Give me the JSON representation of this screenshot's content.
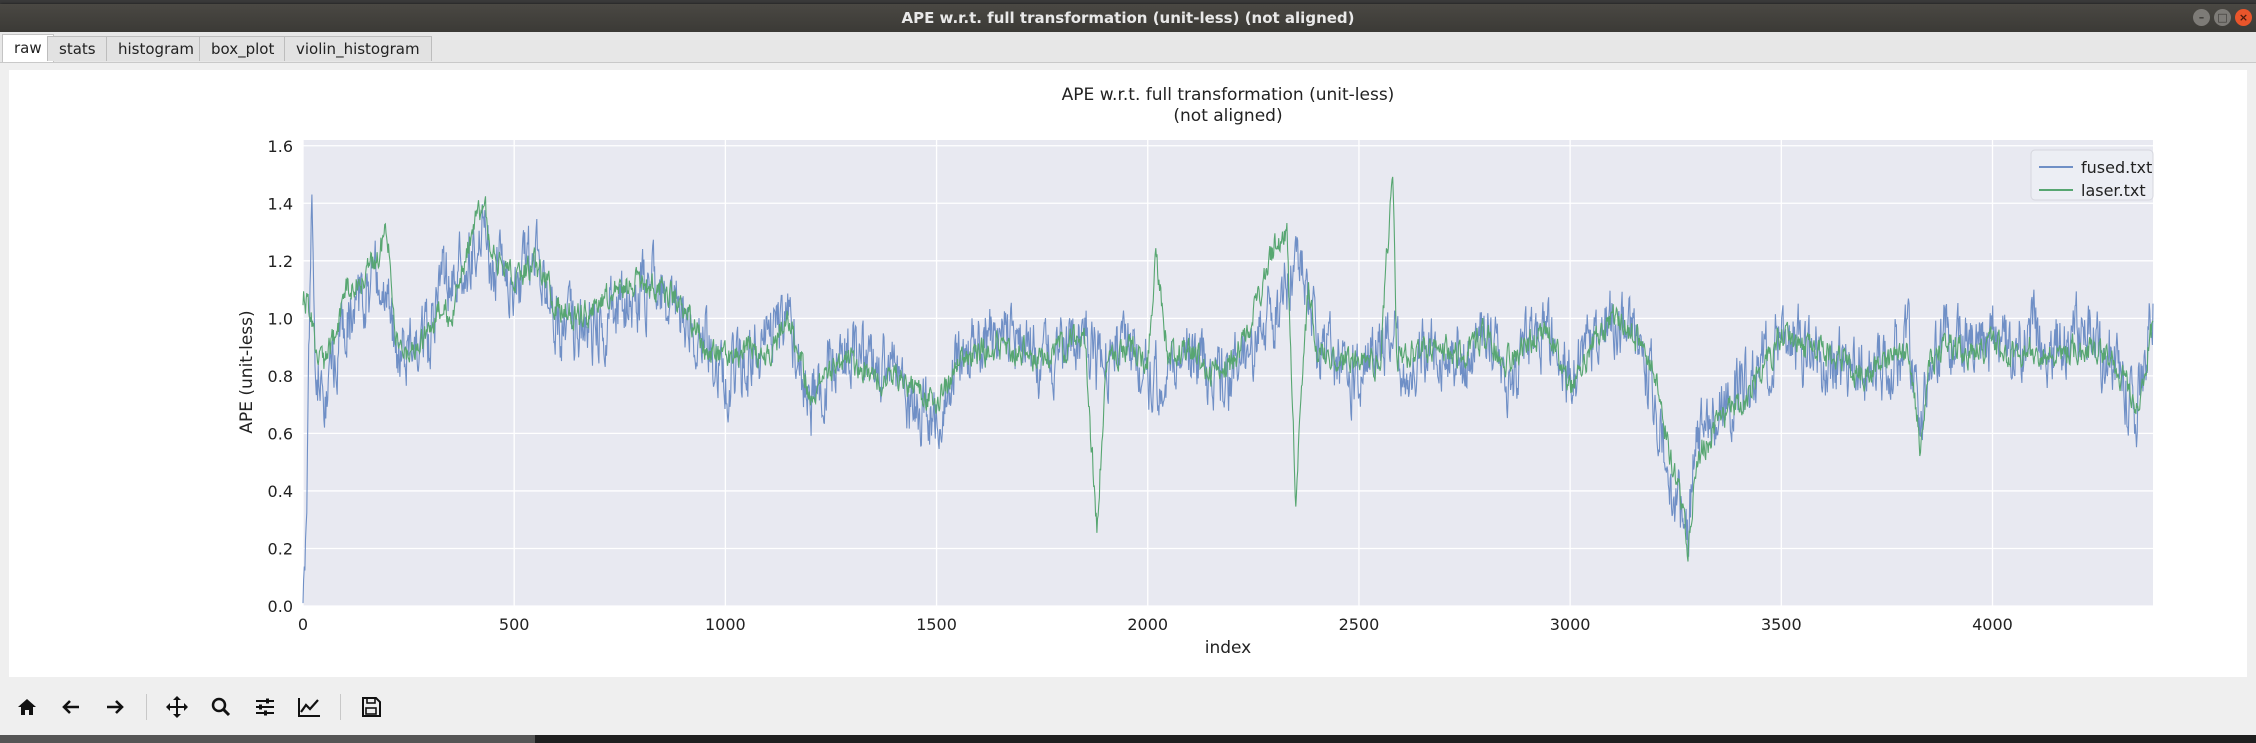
{
  "window": {
    "title": "APE w.r.t. full transformation (unit-less) (not aligned)",
    "controls": [
      "minimize-icon",
      "maximize-icon",
      "close-icon"
    ]
  },
  "tabs": [
    {
      "label": "raw",
      "active": true
    },
    {
      "label": "stats",
      "active": false
    },
    {
      "label": "histogram",
      "active": false
    },
    {
      "label": "box_plot",
      "active": false
    },
    {
      "label": "violin_histogram",
      "active": false
    }
  ],
  "toolbar": {
    "tools": [
      "home-icon",
      "back-icon",
      "forward-icon",
      "pan-icon",
      "zoom-icon",
      "configure-subplots-icon",
      "edit-axis-icon",
      "save-icon"
    ]
  },
  "colors": {
    "plot_background": "#e8e9f1",
    "grid": "#ffffff",
    "fused": "#6f8fc6",
    "laser": "#57a671",
    "close_button": "#e9552b"
  },
  "chart_data": {
    "type": "line",
    "title": "APE w.r.t. full transformation (unit-less)",
    "subtitle": "(not aligned)",
    "xlabel": "index",
    "ylabel": "APE (unit-less)",
    "xlim": [
      0,
      4380
    ],
    "ylim": [
      0,
      1.62
    ],
    "xticks": [
      0,
      500,
      1000,
      1500,
      2000,
      2500,
      3000,
      3500,
      4000
    ],
    "yticks": [
      0.0,
      0.2,
      0.4,
      0.6,
      0.8,
      1.0,
      1.2,
      1.4,
      1.6
    ],
    "xtick_labels": [
      "0",
      "500",
      "1000",
      "1500",
      "2000",
      "2500",
      "3000",
      "3500",
      "4000"
    ],
    "ytick_labels": [
      "0.0",
      "0.2",
      "0.4",
      "0.6",
      "0.8",
      "1.0",
      "1.2",
      "1.4",
      "1.6"
    ],
    "grid": true,
    "legend_position": "top-right",
    "series": [
      {
        "name": "fused.txt",
        "color": "#6f8fc6",
        "noise": 0.22,
        "x": [
          0,
          10,
          20,
          30,
          50,
          80,
          100,
          150,
          200,
          220,
          250,
          300,
          330,
          350,
          400,
          430,
          450,
          500,
          550,
          600,
          650,
          700,
          750,
          800,
          850,
          900,
          950,
          1000,
          1050,
          1100,
          1150,
          1200,
          1250,
          1300,
          1350,
          1400,
          1450,
          1500,
          1550,
          1600,
          1650,
          1700,
          1750,
          1800,
          1850,
          1880,
          1900,
          1950,
          2000,
          2050,
          2100,
          2150,
          2200,
          2250,
          2300,
          2330,
          2350,
          2380,
          2400,
          2450,
          2500,
          2550,
          2580,
          2600,
          2650,
          2700,
          2750,
          2800,
          2850,
          2900,
          2950,
          3000,
          3050,
          3100,
          3150,
          3200,
          3250,
          3280,
          3300,
          3350,
          3400,
          3450,
          3500,
          3550,
          3600,
          3650,
          3700,
          3750,
          3800,
          3830,
          3850,
          3900,
          3950,
          4000,
          4050,
          4100,
          4150,
          4200,
          4250,
          4300,
          4340,
          4380
        ],
        "y": [
          0.08,
          0.4,
          1.4,
          0.85,
          0.7,
          0.9,
          1.0,
          1.1,
          1.15,
          0.85,
          0.9,
          0.95,
          1.2,
          1.1,
          1.25,
          1.3,
          1.15,
          1.15,
          1.2,
          1.0,
          0.95,
          1.0,
          1.05,
          1.1,
          1.1,
          1.05,
          0.95,
          0.8,
          0.85,
          0.9,
          1.0,
          0.7,
          0.85,
          0.9,
          0.8,
          0.85,
          0.7,
          0.65,
          0.85,
          0.9,
          0.95,
          0.9,
          0.85,
          0.9,
          0.95,
          0.8,
          0.85,
          0.9,
          0.8,
          0.85,
          0.9,
          0.8,
          0.8,
          0.9,
          1.0,
          1.1,
          1.3,
          1.1,
          0.9,
          0.85,
          0.8,
          0.9,
          1.0,
          0.85,
          0.9,
          0.9,
          0.85,
          0.95,
          0.8,
          0.9,
          0.95,
          0.8,
          0.9,
          1.0,
          0.95,
          0.75,
          0.35,
          0.3,
          0.55,
          0.7,
          0.75,
          0.85,
          0.95,
          0.9,
          0.85,
          0.85,
          0.8,
          0.85,
          0.9,
          0.6,
          0.9,
          0.95,
          0.9,
          0.95,
          0.9,
          0.95,
          0.9,
          0.95,
          0.9,
          0.85,
          0.65,
          1.05
        ]
      },
      {
        "name": "laser.txt",
        "color": "#57a671",
        "noise": 0.09,
        "x": [
          0,
          10,
          20,
          30,
          50,
          80,
          100,
          150,
          200,
          220,
          250,
          300,
          330,
          350,
          400,
          430,
          450,
          500,
          550,
          600,
          650,
          700,
          750,
          800,
          850,
          900,
          950,
          1000,
          1050,
          1100,
          1150,
          1200,
          1250,
          1300,
          1350,
          1400,
          1450,
          1500,
          1550,
          1600,
          1650,
          1700,
          1750,
          1800,
          1850,
          1880,
          1900,
          1950,
          2000,
          2020,
          2050,
          2100,
          2150,
          2200,
          2250,
          2300,
          2330,
          2350,
          2380,
          2400,
          2450,
          2500,
          2550,
          2580,
          2590,
          2600,
          2650,
          2700,
          2750,
          2800,
          2850,
          2900,
          2950,
          3000,
          3050,
          3100,
          3150,
          3200,
          3250,
          3280,
          3300,
          3350,
          3400,
          3450,
          3500,
          3550,
          3600,
          3650,
          3700,
          3750,
          3800,
          3830,
          3850,
          3900,
          3950,
          4000,
          4050,
          4100,
          4150,
          4200,
          4250,
          4300,
          4340,
          4380
        ],
        "y": [
          1.08,
          1.05,
          1.0,
          0.9,
          0.85,
          0.95,
          1.1,
          1.15,
          1.3,
          0.9,
          0.88,
          0.95,
          1.05,
          1.0,
          1.3,
          1.4,
          1.2,
          1.15,
          1.18,
          1.05,
          1.0,
          1.05,
          1.1,
          1.12,
          1.1,
          1.05,
          0.9,
          0.85,
          0.9,
          0.88,
          1.0,
          0.75,
          0.8,
          0.85,
          0.8,
          0.8,
          0.75,
          0.7,
          0.85,
          0.88,
          0.9,
          0.88,
          0.85,
          0.9,
          0.95,
          0.25,
          0.85,
          0.9,
          0.85,
          1.2,
          0.85,
          0.9,
          0.8,
          0.85,
          1.0,
          1.25,
          1.3,
          0.35,
          1.1,
          0.9,
          0.85,
          0.85,
          0.85,
          1.52,
          0.85,
          0.85,
          0.9,
          0.9,
          0.88,
          0.95,
          0.85,
          0.9,
          0.95,
          0.75,
          0.9,
          1.0,
          0.95,
          0.8,
          0.45,
          0.2,
          0.5,
          0.65,
          0.7,
          0.8,
          0.95,
          0.9,
          0.88,
          0.85,
          0.8,
          0.85,
          0.9,
          0.55,
          0.85,
          0.92,
          0.88,
          0.9,
          0.88,
          0.9,
          0.88,
          0.9,
          0.88,
          0.82,
          0.7,
          0.98
        ]
      }
    ]
  }
}
